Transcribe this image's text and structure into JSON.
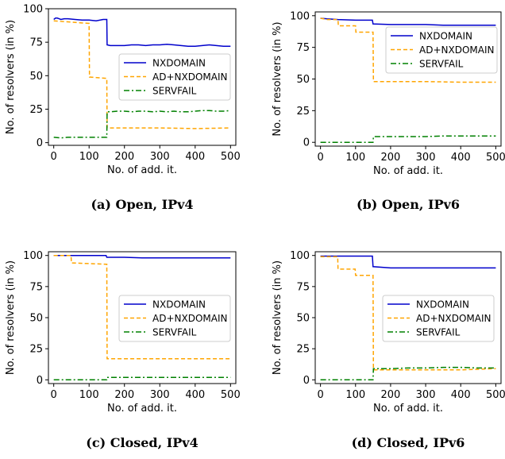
{
  "chart_data": [
    {
      "type": "line",
      "caption": "(a) Open, IPv4",
      "xlabel": "No. of add. it.",
      "ylabel": "No. of resolvers (in %)",
      "xlim": [
        -15,
        515
      ],
      "ylim": [
        -2,
        100
      ],
      "xticks": [
        0,
        100,
        200,
        300,
        400,
        500
      ],
      "yticks": [
        0,
        25,
        50,
        75,
        100
      ],
      "legend_position": "center-right",
      "series": [
        {
          "name": "NXDOMAIN",
          "color": "#0000cc",
          "style": "solid",
          "x": [
            0,
            5,
            10,
            15,
            20,
            30,
            40,
            60,
            80,
            100,
            120,
            140,
            150,
            151,
            160,
            180,
            200,
            220,
            240,
            260,
            280,
            300,
            320,
            340,
            360,
            380,
            400,
            420,
            440,
            460,
            480,
            500
          ],
          "y": [
            92,
            93,
            93,
            92.5,
            92,
            92.5,
            92.5,
            92,
            91.5,
            91.5,
            91,
            92,
            92,
            73,
            72.5,
            72.5,
            72.5,
            73,
            73,
            72.5,
            73,
            73,
            73.5,
            73,
            72.5,
            72,
            72,
            72.5,
            73,
            72.5,
            72,
            72
          ]
        },
        {
          "name": "AD+NXDOMAIN",
          "color": "#ffa500",
          "style": "dashed",
          "x": [
            0,
            50,
            100,
            101,
            150,
            151,
            200,
            300,
            400,
            500
          ],
          "y": [
            91,
            90,
            89,
            49,
            48,
            11,
            11,
            11,
            10.5,
            11
          ]
        },
        {
          "name": "SERVFAIL",
          "color": "#008000",
          "style": "dashdot",
          "x": [
            0,
            20,
            40,
            60,
            80,
            100,
            120,
            140,
            150,
            151,
            160,
            180,
            200,
            220,
            240,
            260,
            280,
            300,
            320,
            340,
            360,
            380,
            400,
            420,
            440,
            460,
            480,
            500
          ],
          "y": [
            4,
            3.5,
            4,
            4,
            4,
            4,
            4,
            4,
            4,
            23,
            23,
            23.5,
            23.5,
            23,
            23.5,
            23.5,
            23,
            23.5,
            23,
            23.5,
            23,
            23,
            23.5,
            24,
            24,
            23.5,
            23.5,
            24
          ]
        }
      ]
    },
    {
      "type": "line",
      "caption": "(b) Open, IPv6",
      "xlabel": "No. of add. it.",
      "ylabel": "No. of resolvers (in %)",
      "xlim": [
        -15,
        515
      ],
      "ylim": [
        -3,
        103
      ],
      "xticks": [
        0,
        100,
        200,
        300,
        400,
        500
      ],
      "yticks": [
        0,
        25,
        50,
        75,
        100
      ],
      "legend_position": "center-right",
      "series": [
        {
          "name": "NXDOMAIN",
          "color": "#0000cc",
          "style": "solid",
          "x": [
            0,
            20,
            50,
            100,
            148,
            150,
            200,
            250,
            300,
            350,
            400,
            450,
            500
          ],
          "y": [
            98,
            97.5,
            97,
            96.5,
            96.5,
            93.5,
            93,
            93,
            93,
            92.5,
            92.5,
            92.5,
            92.5
          ]
        },
        {
          "name": "AD+NXDOMAIN",
          "color": "#ffa500",
          "style": "dashed",
          "x": [
            0,
            20,
            50,
            51,
            100,
            101,
            150,
            151,
            200,
            300,
            400,
            500
          ],
          "y": [
            98,
            97,
            97,
            92,
            92,
            87,
            87,
            48,
            48,
            48,
            47.5,
            47.5
          ]
        },
        {
          "name": "SERVFAIL",
          "color": "#008000",
          "style": "dashdot",
          "x": [
            0,
            50,
            100,
            150,
            151,
            200,
            250,
            300,
            350,
            400,
            450,
            500
          ],
          "y": [
            0,
            0,
            0,
            0,
            4.5,
            4.5,
            4.5,
            4.5,
            5,
            5,
            5,
            5
          ]
        }
      ]
    },
    {
      "type": "line",
      "caption": "(c) Closed, IPv4",
      "xlabel": "No. of add. it.",
      "ylabel": "No. of resolvers (in %)",
      "xlim": [
        -15,
        515
      ],
      "ylim": [
        -3,
        103
      ],
      "xticks": [
        0,
        100,
        200,
        300,
        400,
        500
      ],
      "yticks": [
        0,
        25,
        50,
        75,
        100
      ],
      "legend_position": "center-right",
      "series": [
        {
          "name": "NXDOMAIN",
          "color": "#0000cc",
          "style": "solid",
          "x": [
            0,
            50,
            100,
            148,
            150,
            200,
            250,
            300,
            350,
            400,
            450,
            500
          ],
          "y": [
            100,
            100,
            100,
            100,
            98.5,
            98.5,
            98,
            98,
            98,
            98,
            98,
            98
          ]
        },
        {
          "name": "AD+NXDOMAIN",
          "color": "#ffa500",
          "style": "dashed",
          "x": [
            0,
            49,
            50,
            148,
            150,
            151,
            200,
            300,
            400,
            500
          ],
          "y": [
            100,
            100,
            94,
            93,
            93,
            17,
            17,
            17,
            17,
            17
          ]
        },
        {
          "name": "SERVFAIL",
          "color": "#008000",
          "style": "dashdot",
          "x": [
            0,
            50,
            100,
            150,
            151,
            200,
            300,
            400,
            500
          ],
          "y": [
            0,
            0,
            0,
            0,
            2,
            2,
            2,
            2,
            2
          ]
        }
      ]
    },
    {
      "type": "line",
      "caption": "(d) Closed, IPv6",
      "xlabel": "No. of add. it.",
      "ylabel": "No. of resolvers (in %)",
      "xlim": [
        -15,
        515
      ],
      "ylim": [
        -3,
        103
      ],
      "xticks": [
        0,
        100,
        200,
        300,
        400,
        500
      ],
      "yticks": [
        0,
        25,
        50,
        75,
        100
      ],
      "legend_position": "center-right",
      "series": [
        {
          "name": "NXDOMAIN",
          "color": "#0000cc",
          "style": "solid",
          "x": [
            0,
            50,
            100,
            148,
            150,
            200,
            250,
            300,
            350,
            400,
            450,
            500
          ],
          "y": [
            99.5,
            99.5,
            99.5,
            99.5,
            91,
            90,
            90,
            90,
            90,
            90,
            90,
            90
          ]
        },
        {
          "name": "AD+NXDOMAIN",
          "color": "#ffa500",
          "style": "dashed",
          "x": [
            0,
            49,
            50,
            99,
            100,
            148,
            150,
            151,
            200,
            300,
            400,
            500
          ],
          "y": [
            99,
            99,
            89,
            89,
            84,
            84,
            84,
            8,
            8,
            8,
            8,
            9
          ]
        },
        {
          "name": "SERVFAIL",
          "color": "#008000",
          "style": "dashdot",
          "x": [
            0,
            50,
            100,
            148,
            150,
            151,
            200,
            250,
            300,
            350,
            400,
            450,
            500
          ],
          "y": [
            0,
            0,
            0,
            0,
            0,
            9,
            9,
            9.5,
            9.5,
            10,
            10,
            9.5,
            9.5
          ]
        }
      ]
    }
  ]
}
